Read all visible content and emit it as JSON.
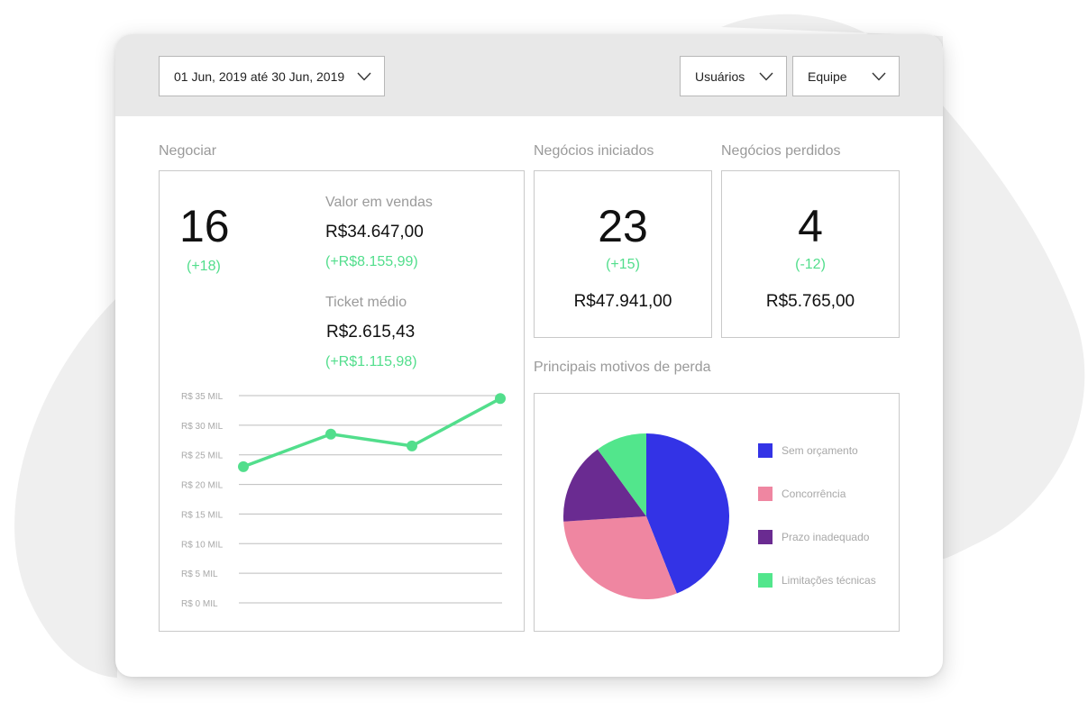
{
  "filters": {
    "date_range": "01 Jun, 2019 até 30 Jun, 2019",
    "users": "Usuários",
    "team": "Equipe"
  },
  "negociar": {
    "title": "Negociar",
    "count": "16",
    "count_delta": "(+18)",
    "sales_value_label": "Valor em vendas",
    "sales_value": "R$34.647,00",
    "sales_value_delta": "(+R$8.155,99)",
    "ticket_label": "Ticket médio",
    "ticket_value": "R$2.615,43",
    "ticket_delta": "(+R$1.115,98)"
  },
  "iniciados": {
    "title": "Negócios iniciados",
    "count": "23",
    "delta": "(+15)",
    "value": "R$47.941,00"
  },
  "perdidos": {
    "title": "Negócios perdidos",
    "count": "4",
    "delta": "(-12)",
    "value": "R$5.765,00"
  },
  "motivos": {
    "title": "Principais motivos de perda"
  },
  "colors": {
    "accent_green": "#52de8c",
    "blue": "#3333e6",
    "pink": "#ef86a1",
    "purple": "#6a2b91",
    "teal_green": "#52e68c"
  },
  "chart_data": [
    {
      "type": "line",
      "ylim": [
        0,
        35
      ],
      "ytick_labels": [
        "R$ 35 MIL",
        "R$ 30 MIL",
        "R$ 25 MIL",
        "R$ 20 MIL",
        "R$ 15 MIL",
        "R$ 10 MIL",
        "R$ 5 MIL",
        "R$ 0 MIL"
      ],
      "ytick_values": [
        35,
        30,
        25,
        20,
        15,
        10,
        5,
        0
      ],
      "x": [
        1,
        2,
        3,
        4
      ],
      "values": [
        23,
        28.5,
        26.5,
        34.5
      ],
      "grid": true,
      "color": "#52de8c"
    },
    {
      "type": "pie",
      "labels": [
        "Sem orçamento",
        "Concorrência",
        "Prazo inadequado",
        "Limitações técnicas"
      ],
      "values": [
        44,
        30,
        16,
        10
      ],
      "colors": [
        "#3333e6",
        "#ef86a1",
        "#6a2b91",
        "#52e68c"
      ],
      "legend": "right"
    }
  ]
}
